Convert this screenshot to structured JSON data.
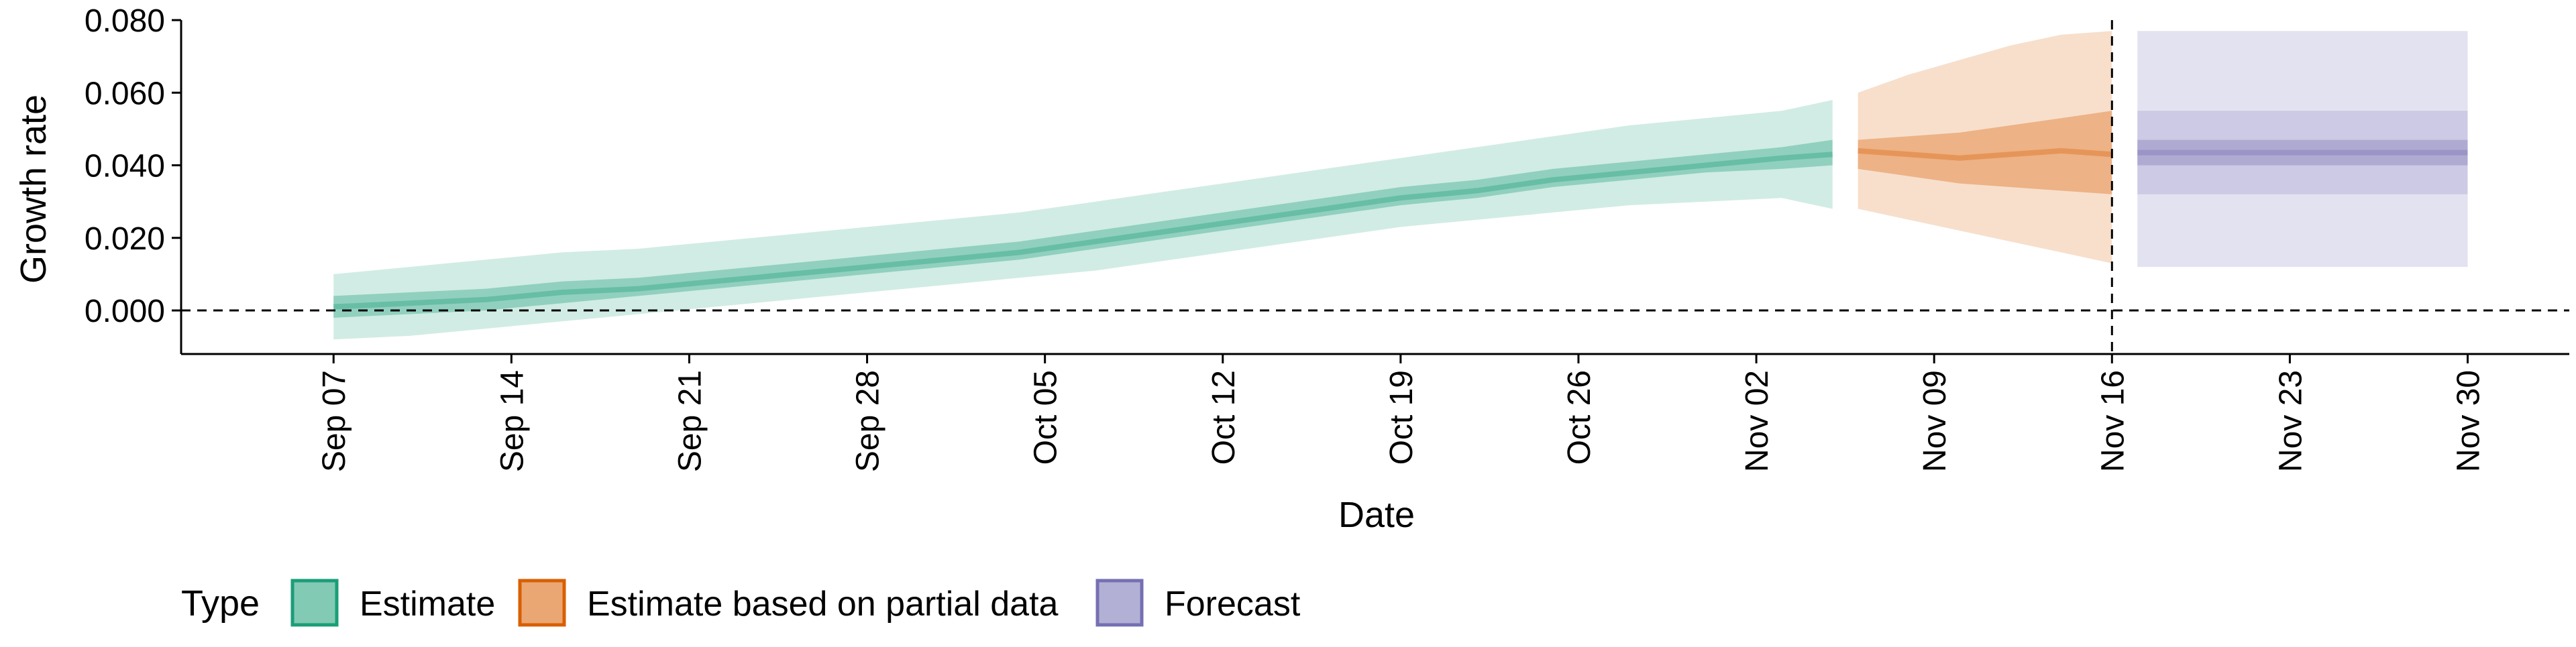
{
  "chart_data": {
    "type": "area",
    "xlabel": "Date",
    "ylabel": "Growth rate",
    "ylim": [
      -0.012,
      0.08
    ],
    "xlim": [
      "2020-09-01",
      "2020-12-04"
    ],
    "x_ticks": [
      "2020-09-07",
      "2020-09-14",
      "2020-09-21",
      "2020-09-28",
      "2020-10-05",
      "2020-10-12",
      "2020-10-19",
      "2020-10-26",
      "2020-11-02",
      "2020-11-09",
      "2020-11-16",
      "2020-11-23",
      "2020-11-30"
    ],
    "x_tick_labels": [
      "Sep 07",
      "Sep 14",
      "Sep 21",
      "Sep 28",
      "Oct 05",
      "Oct 12",
      "Oct 19",
      "Oct 26",
      "Nov 02",
      "Nov 09",
      "Nov 16",
      "Nov 23",
      "Nov 30"
    ],
    "y_ticks": [
      0.0,
      0.02,
      0.04,
      0.06,
      0.08
    ],
    "y_tick_labels": [
      "0.000",
      "0.020",
      "0.040",
      "0.060",
      "0.080"
    ],
    "grid": false,
    "hline": 0,
    "vline": "2020-11-16",
    "legend": {
      "title": "Type",
      "placement": "bottom-left",
      "entries": [
        "Estimate",
        "Estimate based on partial data",
        "Forecast"
      ]
    },
    "colors": {
      "Estimate": "#1b9e77",
      "Estimate based on partial data": "#d95f02",
      "Forecast": "#7570b3"
    },
    "series": [
      {
        "type": "Estimate",
        "dates": [
          "2020-09-07",
          "2020-09-10",
          "2020-09-13",
          "2020-09-16",
          "2020-09-19",
          "2020-09-22",
          "2020-09-25",
          "2020-09-28",
          "2020-10-01",
          "2020-10-04",
          "2020-10-07",
          "2020-10-10",
          "2020-10-13",
          "2020-10-16",
          "2020-10-19",
          "2020-10-22",
          "2020-10-25",
          "2020-10-28",
          "2020-10-31",
          "2020-11-03",
          "2020-11-05"
        ],
        "median": [
          0.001,
          0.002,
          0.003,
          0.005,
          0.006,
          0.008,
          0.01,
          0.012,
          0.014,
          0.016,
          0.019,
          0.022,
          0.025,
          0.028,
          0.031,
          0.033,
          0.036,
          0.038,
          0.04,
          0.042,
          0.043
        ],
        "lower_50": [
          -0.002,
          -0.001,
          0.0,
          0.002,
          0.004,
          0.006,
          0.008,
          0.01,
          0.012,
          0.014,
          0.017,
          0.02,
          0.023,
          0.026,
          0.029,
          0.031,
          0.034,
          0.036,
          0.038,
          0.039,
          0.04
        ],
        "upper_50": [
          0.004,
          0.005,
          0.006,
          0.008,
          0.009,
          0.011,
          0.013,
          0.015,
          0.017,
          0.019,
          0.022,
          0.025,
          0.028,
          0.031,
          0.034,
          0.036,
          0.039,
          0.041,
          0.043,
          0.045,
          0.047
        ],
        "lower_90": [
          -0.008,
          -0.007,
          -0.005,
          -0.003,
          -0.001,
          0.001,
          0.003,
          0.005,
          0.007,
          0.009,
          0.011,
          0.014,
          0.017,
          0.02,
          0.023,
          0.025,
          0.027,
          0.029,
          0.03,
          0.031,
          0.028
        ],
        "upper_90": [
          0.01,
          0.012,
          0.014,
          0.016,
          0.017,
          0.019,
          0.021,
          0.023,
          0.025,
          0.027,
          0.03,
          0.033,
          0.036,
          0.039,
          0.042,
          0.045,
          0.048,
          0.051,
          0.053,
          0.055,
          0.058
        ]
      },
      {
        "type": "Estimate based on partial data",
        "dates": [
          "2020-11-06",
          "2020-11-08",
          "2020-11-10",
          "2020-11-12",
          "2020-11-14",
          "2020-11-16"
        ],
        "median": [
          0.044,
          0.043,
          0.042,
          0.043,
          0.044,
          0.043
        ],
        "lower_50": [
          0.039,
          0.037,
          0.035,
          0.034,
          0.033,
          0.032
        ],
        "upper_50": [
          0.047,
          0.048,
          0.049,
          0.051,
          0.053,
          0.055
        ],
        "lower_90": [
          0.028,
          0.025,
          0.022,
          0.019,
          0.016,
          0.013
        ],
        "upper_90": [
          0.06,
          0.065,
          0.069,
          0.073,
          0.076,
          0.077
        ]
      },
      {
        "type": "Forecast",
        "dates": [
          "2020-11-17",
          "2020-11-30"
        ],
        "median": [
          0.0435,
          0.0435
        ],
        "lower_50": [
          0.04,
          0.04
        ],
        "upper_50": [
          0.047,
          0.047
        ],
        "lower_75": [
          0.032,
          0.032
        ],
        "upper_75": [
          0.055,
          0.055
        ],
        "lower_90": [
          0.012,
          0.012
        ],
        "upper_90": [
          0.077,
          0.077
        ]
      }
    ]
  }
}
